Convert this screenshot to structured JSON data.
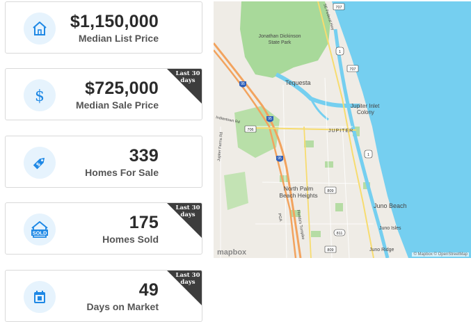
{
  "cards": [
    {
      "value": "$1,150,000",
      "label": "Median List Price",
      "icon": "house-icon"
    },
    {
      "value": "$725,000",
      "label": "Median Sale Price",
      "icon": "dollar-icon",
      "ribbon": "Last 30 days"
    },
    {
      "value": "339",
      "label": "Homes For Sale",
      "icon": "price-tag-icon"
    },
    {
      "value": "175",
      "label": "Homes Sold",
      "icon": "sold-house-icon",
      "ribbon": "Last 30 days"
    },
    {
      "value": "49",
      "label": "Days on Market",
      "icon": "calendar-icon",
      "ribbon": "Last 30 days"
    }
  ],
  "ribbons": {
    "line1": "Last 30",
    "line2": "days"
  },
  "sold_icon_text": "SOLD",
  "map": {
    "labels": {
      "park": "Jonathan Dickinson",
      "park2": "State Park",
      "tequesta": "Tequesta",
      "jupiter_inlet": "Jupiter Inlet",
      "colony": "Colony",
      "jupiter": "JUPITER",
      "north_palm": "North Palm",
      "beach_heights": "Beach Heights",
      "juno_beach": "Juno Beach",
      "juno_isles": "Juno Isles",
      "juno_ridge": "Juno Ridge",
      "indiantown": "Indiantown Rd",
      "jupiter_farms": "Jupiter Farms Rd",
      "federal": "SE Federal Hwy",
      "turnpike": "Florida's Turnpike",
      "pga": "PGA",
      "r707a": "707",
      "r707b": "707",
      "r706": "706",
      "r811": "811",
      "r809a": "809",
      "r809b": "809",
      "r95a": "95",
      "r95b": "95",
      "r95c": "95",
      "r1a": "1",
      "r1b": "1"
    },
    "logo": "mapbox",
    "attribution": "© Mapbox © OpenStreetMap"
  },
  "colors": {
    "accent": "#1e88e5",
    "icon_bg": "#e6f3fd",
    "ocean": "#75cff0",
    "park": "#a8d99a",
    "ribbon": "#3d3d3d"
  }
}
